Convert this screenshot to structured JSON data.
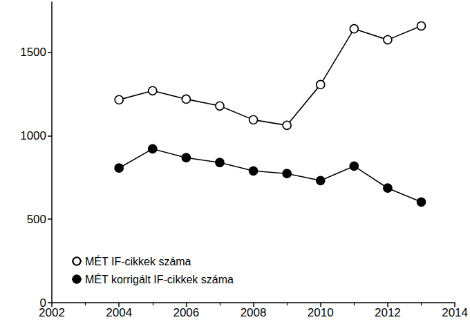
{
  "chart_data": {
    "type": "line",
    "x": [
      2004,
      2005,
      2006,
      2007,
      2008,
      2009,
      2010,
      2011,
      2012,
      2013
    ],
    "series": [
      {
        "name": "MÉT IF-cikkek száma",
        "color": "#000000",
        "marker": "circle_open",
        "values": [
          1215,
          1269,
          1219,
          1178,
          1095,
          1062,
          1306,
          1640,
          1574,
          1657
        ]
      },
      {
        "name": "MÉT korrigált IF-cikkek száma",
        "color": "#000000",
        "marker": "circle",
        "values": [
          806,
          921,
          868,
          839,
          789,
          773,
          731,
          818,
          686,
          603
        ]
      }
    ],
    "xlim": [
      2002,
      2014
    ],
    "xticks": [
      2002,
      2004,
      2006,
      2008,
      2010,
      2012,
      2014
    ],
    "ylim": [
      0,
      1800
    ],
    "yticks": [
      0,
      500,
      1000,
      1500
    ],
    "grid": false,
    "legend": "lower left"
  }
}
